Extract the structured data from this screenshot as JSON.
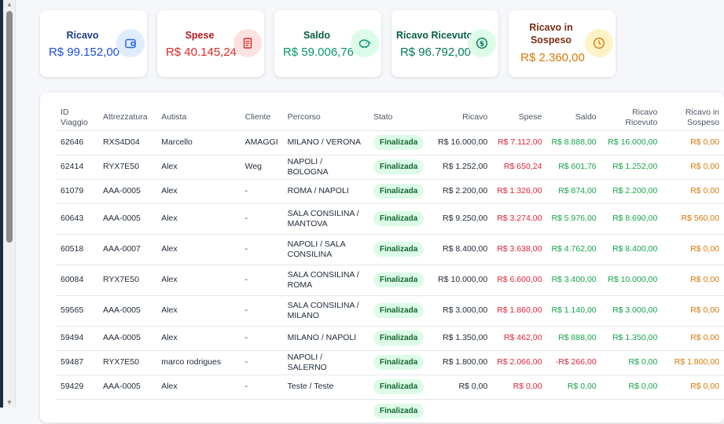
{
  "cards": [
    {
      "title": "Ricavo",
      "value": "R$ 99.152,00",
      "icon": "wallet-icon",
      "title_color": "#1e3a8a",
      "value_color": "#1d4ed8",
      "icon_bg": "#e0ecff"
    },
    {
      "title": "Spese",
      "value": "R$ 40.145,24",
      "icon": "receipt-icon",
      "title_color": "#b91c1c",
      "value_color": "#dc2626",
      "icon_bg": "#fde2e2"
    },
    {
      "title": "Saldo",
      "value": "R$ 59.006,76",
      "icon": "piggy-bank-icon",
      "title_color": "#065f46",
      "value_color": "#059669",
      "icon_bg": "#dcfce7"
    },
    {
      "title": "Ricavo Ricevuto",
      "value": "R$ 96.792,00",
      "icon": "dollar-circle-icon",
      "title_color": "#065f46",
      "value_color": "#047857",
      "icon_bg": "#dcfce7"
    },
    {
      "title": "Ricavo in Sospeso",
      "value": "R$ 2.360,00",
      "icon": "clock-icon",
      "title_color": "#7c2d12",
      "value_color": "#d97706",
      "icon_bg": "#fef3c7"
    }
  ],
  "table": {
    "headers": [
      "ID Viaggio",
      "Attrezzatura",
      "Autista",
      "Cliente",
      "Percorso",
      "Stato",
      "Ricavo",
      "Spese",
      "Saldo",
      "Ricavo Ricevuto",
      "Ricavo in Sospeso"
    ],
    "rows": [
      {
        "id": "62646",
        "attrezzatura": "RXS4D04",
        "autista": "Marcello",
        "cliente": "AMAGGI",
        "percorso": "MILANO / VERONA",
        "stato": "Finalizada",
        "ricavo": "R$ 16.000,00",
        "spese": "R$ 7.112,00",
        "saldo": "R$ 8.888,00",
        "ricevuto": "R$ 16.000,00",
        "sospeso": "R$ 0,00"
      },
      {
        "id": "62414",
        "attrezzatura": "RYX7E50",
        "autista": "Alex",
        "cliente": "Weg",
        "percorso": "NAPOLI / BOLOGNA",
        "stato": "Finalizada",
        "ricavo": "R$ 1.252,00",
        "spese": "R$ 650,24",
        "saldo": "R$ 601,76",
        "ricevuto": "R$ 1.252,00",
        "sospeso": "R$ 0,00"
      },
      {
        "id": "61079",
        "attrezzatura": "AAA-0005",
        "autista": "Alex",
        "cliente": "-",
        "percorso": "ROMA / NAPOLI",
        "stato": "Finalizada",
        "ricavo": "R$ 2.200,00",
        "spese": "R$ 1.326,00",
        "saldo": "R$ 874,00",
        "ricevuto": "R$ 2.200,00",
        "sospeso": "R$ 0,00"
      },
      {
        "id": "60643",
        "attrezzatura": "AAA-0005",
        "autista": "Alex",
        "cliente": "-",
        "percorso": "SALA CONSILINA / MANTOVA",
        "stato": "Finalizada",
        "ricavo": "R$ 9.250,00",
        "spese": "R$ 3.274,00",
        "saldo": "R$ 5.976,00",
        "ricevuto": "R$ 8.690,00",
        "sospeso": "R$ 560,00"
      },
      {
        "id": "60518",
        "attrezzatura": "AAA-0007",
        "autista": "Alex",
        "cliente": "-",
        "percorso": "NAPOLI / SALA CONSILINA",
        "stato": "Finalizada",
        "ricavo": "R$ 8.400,00",
        "spese": "R$ 3.638,00",
        "saldo": "R$ 4.762,00",
        "ricevuto": "R$ 8.400,00",
        "sospeso": "R$ 0,00"
      },
      {
        "id": "60084",
        "attrezzatura": "RYX7E50",
        "autista": "Alex",
        "cliente": "-",
        "percorso": "SALA CONSILINA / ROMA",
        "stato": "Finalizada",
        "ricavo": "R$ 10.000,00",
        "spese": "R$ 6.600,00",
        "saldo": "R$ 3.400,00",
        "ricevuto": "R$ 10.000,00",
        "sospeso": "R$ 0,00"
      },
      {
        "id": "59565",
        "attrezzatura": "AAA-0005",
        "autista": "Alex",
        "cliente": "-",
        "percorso": "SALA CONSILINA / MILANO",
        "stato": "Finalizada",
        "ricavo": "R$ 3.000,00",
        "spese": "R$ 1.860,00",
        "saldo": "R$ 1.140,00",
        "ricevuto": "R$ 3.000,00",
        "sospeso": "R$ 0,00"
      },
      {
        "id": "59494",
        "attrezzatura": "AAA-0005",
        "autista": "Alex",
        "cliente": "-",
        "percorso": "MILANO / NAPOLI",
        "stato": "Finalizada",
        "ricavo": "R$ 1.350,00",
        "spese": "R$ 462,00",
        "saldo": "R$ 888,00",
        "ricevuto": "R$ 1.350,00",
        "sospeso": "R$ 0,00"
      },
      {
        "id": "59487",
        "attrezzatura": "RYX7E50",
        "autista": "marco rodrigues",
        "cliente": "-",
        "percorso": "NAPOLI / SALERNO",
        "stato": "Finalizada",
        "ricavo": "R$ 1.800,00",
        "spese": "R$ 2.066,00",
        "saldo": "-R$ 266,00",
        "ricevuto": "R$ 0,00",
        "sospeso": "R$ 1.800,00"
      },
      {
        "id": "59429",
        "attrezzatura": "AAA-0005",
        "autista": "Alex",
        "cliente": "-",
        "percorso": "Teste / Teste",
        "stato": "Finalizada",
        "ricavo": "R$ 0,00",
        "spese": "R$ 0,00",
        "saldo": "R$ 0,00",
        "ricevuto": "R$ 0,00",
        "sospeso": "R$ 0,00"
      },
      {
        "id": "",
        "attrezzatura": "",
        "autista": "",
        "cliente": "",
        "percorso": "",
        "stato": "Finalizada",
        "ricavo": "",
        "spese": "",
        "saldo": "",
        "ricevuto": "",
        "sospeso": ""
      }
    ]
  },
  "colors": {
    "sidebar": "#1f2a44",
    "badge_bg": "#dcfce7",
    "badge_text": "#166534",
    "spese_red": "#dc2638",
    "saldo_green": "#16a34a",
    "sospeso_orange": "#d97706"
  }
}
